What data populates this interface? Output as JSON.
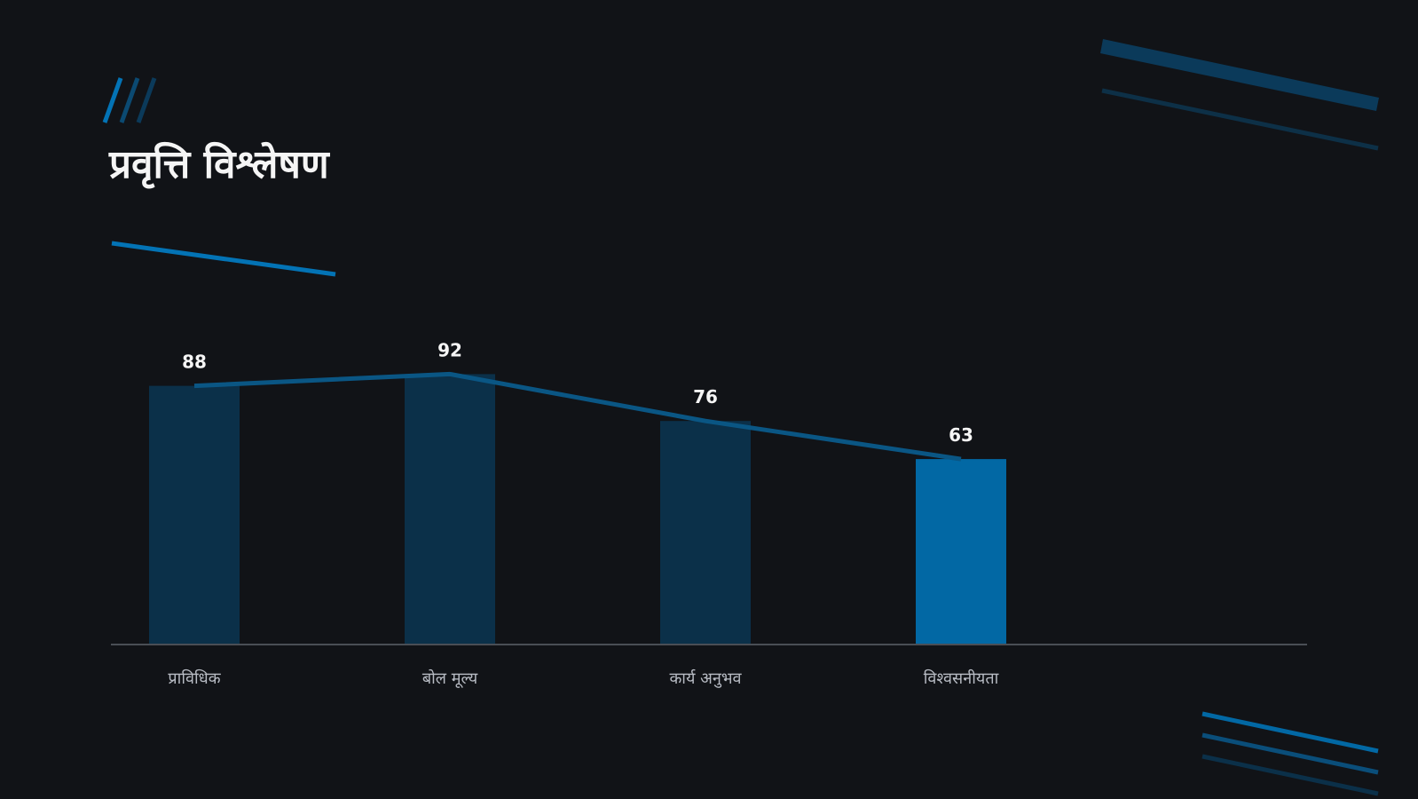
{
  "title": "प्रवृत्ति विश्लेषण",
  "colors": {
    "background": "#111317",
    "bar": "#0b3049",
    "bar_highlight": "#0268a4",
    "trend_line": "#0a5684",
    "accent": "#0373b5",
    "axis": "#4a4e55",
    "text": "#f5f5f5",
    "category_text": "#b8bcc4"
  },
  "chart_data": {
    "type": "bar",
    "categories": [
      "प्राविधिक",
      "बोल मूल्य",
      "कार्य अनुभव",
      "विश्वसनीयता"
    ],
    "values": [
      88,
      92,
      76,
      63
    ],
    "data_labels": [
      "88",
      "92",
      "76",
      "63"
    ],
    "highlight_index": 3,
    "overlay": "line connecting bar tops",
    "ylim": [
      0,
      100
    ],
    "grid": false,
    "legend": "none"
  }
}
